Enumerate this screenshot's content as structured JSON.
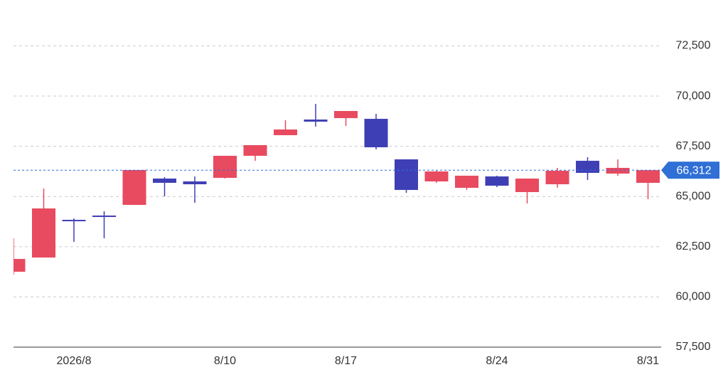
{
  "chart_data": {
    "type": "candlestick",
    "categories": [
      null,
      null,
      "2026/8",
      null,
      null,
      null,
      null,
      "8/10",
      null,
      null,
      null,
      "8/17",
      null,
      null,
      null,
      null,
      "8/24",
      null,
      null,
      null,
      null,
      "8/31"
    ],
    "open": [
      61254,
      61962,
      63838,
      64051,
      64582,
      65893,
      65751,
      65928,
      67026,
      68052,
      68831,
      68902,
      68867,
      66849,
      65751,
      65432,
      65999,
      65220,
      65609,
      66778,
      66140,
      65680
    ],
    "high": [
      62918,
      65397,
      63909,
      64263,
      66317,
      65963,
      65999,
      67026,
      67557,
      68796,
      69611,
      69257,
      69115,
      66849,
      66282,
      66034,
      66034,
      65893,
      66424,
      66955,
      66849,
      66312
    ],
    "low": [
      61112,
      61962,
      62741,
      62918,
      64582,
      65007,
      64688,
      65893,
      66778,
      68052,
      68477,
      68513,
      67344,
      65184,
      65680,
      65326,
      65467,
      64653,
      65432,
      65822,
      66034,
      64865
    ],
    "close": [
      61891,
      64405,
      63768,
      63980,
      66317,
      65680,
      65609,
      67026,
      67557,
      68336,
      68725,
      69257,
      67450,
      65326,
      66247,
      66034,
      65538,
      65893,
      66282,
      66176,
      66424,
      66312
    ],
    "up_color": "#e84a5f",
    "down_color": "#3f3fb5",
    "ylim": [
      57500,
      74500
    ],
    "yticks": [
      {
        "value": 57500,
        "label": "57,500"
      },
      {
        "value": 60000,
        "label": "60,000"
      },
      {
        "value": 62500,
        "label": "62,500"
      },
      {
        "value": 65000,
        "label": "65,000"
      },
      {
        "value": 67500,
        "label": "67,500"
      },
      {
        "value": 70000,
        "label": "70,000"
      },
      {
        "value": 72500,
        "label": "72,500"
      }
    ],
    "current_price": {
      "value": 66312,
      "label": "66,312"
    },
    "current_price_color": "#2f6fd6",
    "grid": true
  }
}
